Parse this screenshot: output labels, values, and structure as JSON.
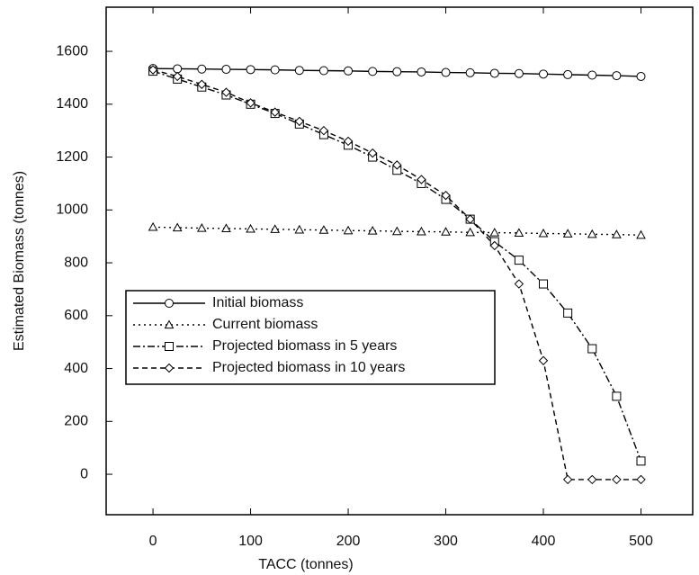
{
  "chart_data": {
    "type": "line",
    "x_label": "TACC (tonnes)",
    "y_label": "Estimated Biomass (tonnes)",
    "x": [
      0,
      25,
      50,
      75,
      100,
      125,
      150,
      175,
      200,
      225,
      250,
      275,
      300,
      325,
      350,
      375,
      400,
      425,
      450,
      475,
      500
    ],
    "series": [
      {
        "name": "Initial biomass",
        "color": "#000000",
        "marker": "circle",
        "dash": "solid",
        "values": [
          1535,
          1534,
          1533,
          1532,
          1531,
          1530,
          1528,
          1527,
          1526,
          1524,
          1523,
          1522,
          1520,
          1519,
          1517,
          1516,
          1514,
          1512,
          1510,
          1508,
          1505
        ]
      },
      {
        "name": "Current biomass",
        "color": "#000000",
        "marker": "triangle",
        "dash": "dotted",
        "values": [
          935,
          933,
          931,
          930,
          928,
          927,
          925,
          924,
          922,
          921,
          919,
          918,
          917,
          915,
          914,
          913,
          911,
          910,
          908,
          907,
          905
        ]
      },
      {
        "name": "Projected biomass in 5 years",
        "color": "#000000",
        "marker": "square",
        "dash": "dashdot",
        "values": [
          1525,
          1495,
          1465,
          1435,
          1400,
          1365,
          1325,
          1285,
          1245,
          1200,
          1150,
          1100,
          1040,
          965,
          880,
          810,
          720,
          610,
          475,
          295,
          50
        ]
      },
      {
        "name": "Projected biomass in 10 years",
        "color": "#000000",
        "marker": "diamond",
        "dash": "dashed",
        "values": [
          1530,
          1505,
          1475,
          1445,
          1405,
          1370,
          1335,
          1300,
          1260,
          1215,
          1170,
          1115,
          1055,
          965,
          865,
          720,
          430,
          -20,
          -20,
          -20,
          -20
        ]
      }
    ],
    "xlim": [
      -48,
      553
    ],
    "ylim": [
      -153,
      1767
    ],
    "xticks": [
      0,
      100,
      200,
      300,
      400,
      500
    ],
    "yticks": [
      0,
      200,
      400,
      600,
      800,
      1000,
      1200,
      1400,
      1600
    ],
    "grid": false,
    "legend": "lower left"
  }
}
